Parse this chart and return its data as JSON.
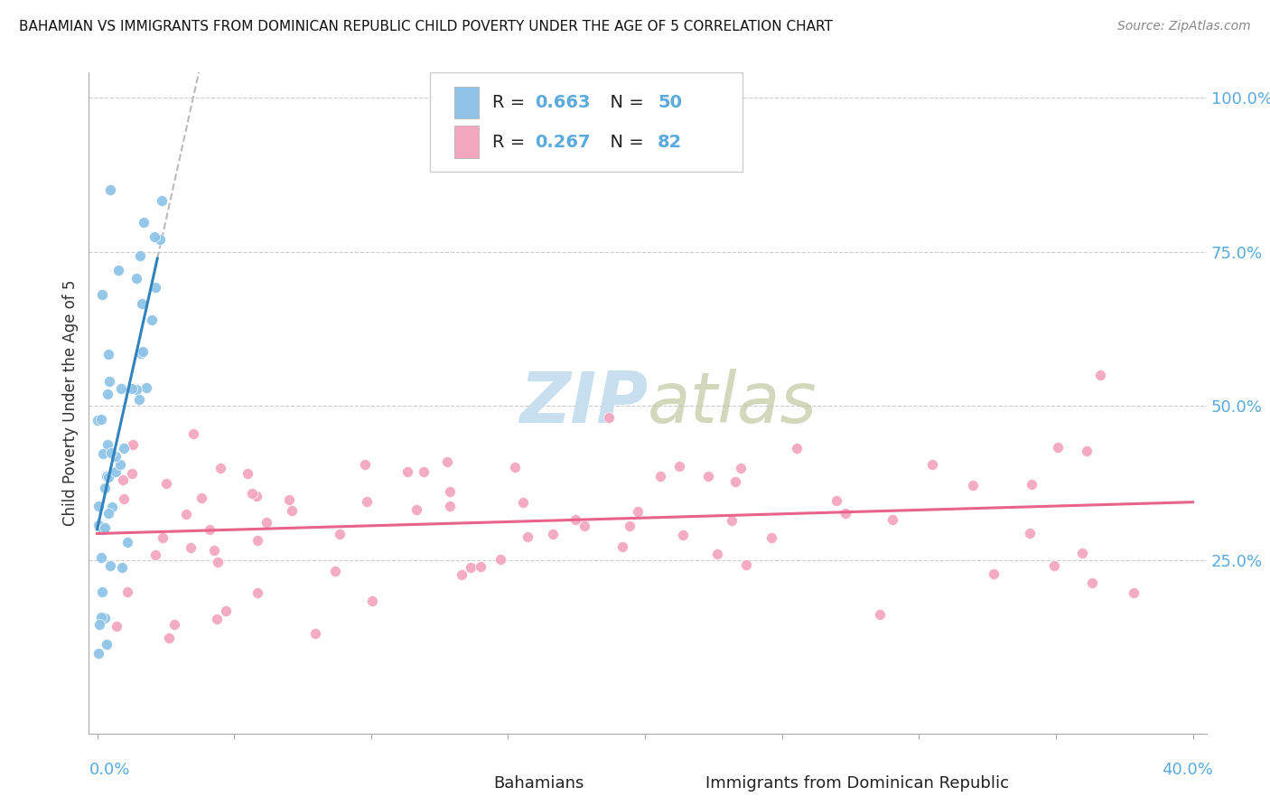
{
  "title": "BAHAMIAN VS IMMIGRANTS FROM DOMINICAN REPUBLIC CHILD POVERTY UNDER THE AGE OF 5 CORRELATION CHART",
  "source": "Source: ZipAtlas.com",
  "ylabel": "Child Poverty Under the Age of 5",
  "legend_label1": "Bahamians",
  "legend_label2": "Immigrants from Dominican Republic",
  "R1": 0.663,
  "N1": 50,
  "R2": 0.267,
  "N2": 82,
  "color_blue": "#8fc4e8",
  "color_pink": "#f4a8c0",
  "color_blue_line": "#3182bd",
  "color_pink_line": "#e8648a",
  "color_axis_text": "#5aaadd",
  "watermark_color": "#c8dff0",
  "xlim_max": 0.4,
  "ylim_max": 1.0,
  "yticks": [
    0.25,
    0.5,
    0.75,
    1.0
  ],
  "ytick_labels": [
    "25.0%",
    "50.0%",
    "75.0%",
    "100.0%"
  ],
  "xtick_left_label": "0.0%",
  "xtick_right_label": "40.0%"
}
